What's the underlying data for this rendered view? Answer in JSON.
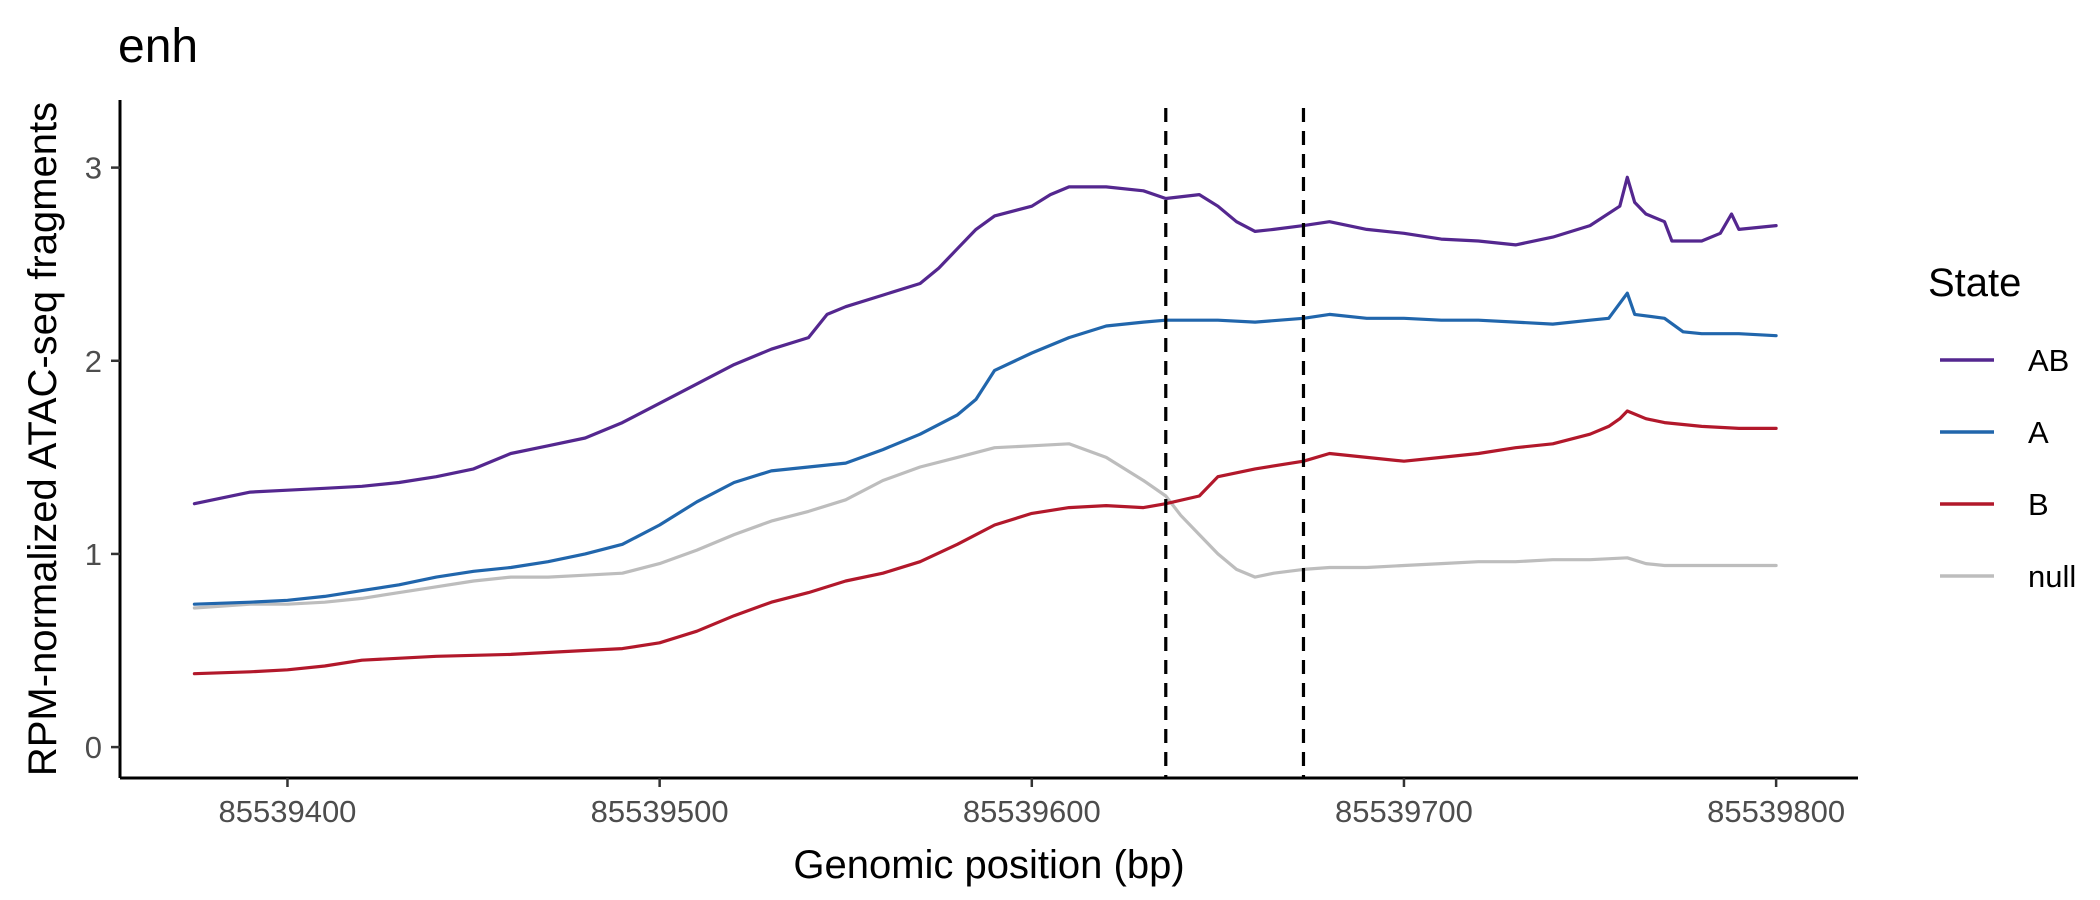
{
  "chart_data": {
    "type": "line",
    "title": "enh",
    "xlabel": "Genomic position (bp)",
    "ylabel": "RPM-normalized ATAC-seq fragments",
    "xlim": [
      85539355,
      85539822
    ],
    "ylim": [
      -0.16,
      3.35
    ],
    "x_ticks": [
      85539400,
      85539500,
      85539600,
      85539700,
      85539800
    ],
    "x_tick_labels": [
      "85539400",
      "85539500",
      "85539600",
      "85539700",
      "85539800"
    ],
    "y_ticks": [
      0,
      1,
      2,
      3
    ],
    "y_tick_labels": [
      "0",
      "1",
      "2",
      "3"
    ],
    "vlines": [
      85539636,
      85539673
    ],
    "grid": false,
    "legend": {
      "title": "State",
      "position": "right"
    },
    "series": [
      {
        "name": "AB",
        "color": "#54278f",
        "points": [
          [
            85539375,
            1.26
          ],
          [
            85539380,
            1.28
          ],
          [
            85539390,
            1.32
          ],
          [
            85539400,
            1.33
          ],
          [
            85539410,
            1.34
          ],
          [
            85539420,
            1.35
          ],
          [
            85539430,
            1.37
          ],
          [
            85539440,
            1.4
          ],
          [
            85539450,
            1.44
          ],
          [
            85539460,
            1.52
          ],
          [
            85539470,
            1.56
          ],
          [
            85539480,
            1.6
          ],
          [
            85539490,
            1.68
          ],
          [
            85539500,
            1.78
          ],
          [
            85539510,
            1.88
          ],
          [
            85539520,
            1.98
          ],
          [
            85539530,
            2.06
          ],
          [
            85539540,
            2.12
          ],
          [
            85539545,
            2.24
          ],
          [
            85539550,
            2.28
          ],
          [
            85539560,
            2.34
          ],
          [
            85539570,
            2.4
          ],
          [
            85539575,
            2.48
          ],
          [
            85539580,
            2.58
          ],
          [
            85539585,
            2.68
          ],
          [
            85539590,
            2.75
          ],
          [
            85539600,
            2.8
          ],
          [
            85539605,
            2.86
          ],
          [
            85539610,
            2.9
          ],
          [
            85539620,
            2.9
          ],
          [
            85539630,
            2.88
          ],
          [
            85539636,
            2.84
          ],
          [
            85539645,
            2.86
          ],
          [
            85539650,
            2.8
          ],
          [
            85539655,
            2.72
          ],
          [
            85539660,
            2.67
          ],
          [
            85539665,
            2.68
          ],
          [
            85539673,
            2.7
          ],
          [
            85539680,
            2.72
          ],
          [
            85539690,
            2.68
          ],
          [
            85539700,
            2.66
          ],
          [
            85539710,
            2.63
          ],
          [
            85539720,
            2.62
          ],
          [
            85539730,
            2.6
          ],
          [
            85539740,
            2.64
          ],
          [
            85539750,
            2.7
          ],
          [
            85539758,
            2.8
          ],
          [
            85539760,
            2.95
          ],
          [
            85539762,
            2.82
          ],
          [
            85539765,
            2.76
          ],
          [
            85539770,
            2.72
          ],
          [
            85539772,
            2.62
          ],
          [
            85539780,
            2.62
          ],
          [
            85539785,
            2.66
          ],
          [
            85539788,
            2.76
          ],
          [
            85539790,
            2.68
          ],
          [
            85539800,
            2.7
          ]
        ]
      },
      {
        "name": "A",
        "color": "#2166ac",
        "points": [
          [
            85539375,
            0.74
          ],
          [
            85539390,
            0.75
          ],
          [
            85539400,
            0.76
          ],
          [
            85539410,
            0.78
          ],
          [
            85539420,
            0.81
          ],
          [
            85539430,
            0.84
          ],
          [
            85539440,
            0.88
          ],
          [
            85539450,
            0.91
          ],
          [
            85539460,
            0.93
          ],
          [
            85539470,
            0.96
          ],
          [
            85539480,
            1.0
          ],
          [
            85539490,
            1.05
          ],
          [
            85539500,
            1.15
          ],
          [
            85539510,
            1.27
          ],
          [
            85539520,
            1.37
          ],
          [
            85539530,
            1.43
          ],
          [
            85539540,
            1.45
          ],
          [
            85539550,
            1.47
          ],
          [
            85539560,
            1.54
          ],
          [
            85539570,
            1.62
          ],
          [
            85539580,
            1.72
          ],
          [
            85539585,
            1.8
          ],
          [
            85539590,
            1.95
          ],
          [
            85539600,
            2.04
          ],
          [
            85539610,
            2.12
          ],
          [
            85539620,
            2.18
          ],
          [
            85539630,
            2.2
          ],
          [
            85539636,
            2.21
          ],
          [
            85539650,
            2.21
          ],
          [
            85539660,
            2.2
          ],
          [
            85539673,
            2.22
          ],
          [
            85539680,
            2.24
          ],
          [
            85539690,
            2.22
          ],
          [
            85539700,
            2.22
          ],
          [
            85539710,
            2.21
          ],
          [
            85539720,
            2.21
          ],
          [
            85539730,
            2.2
          ],
          [
            85539740,
            2.19
          ],
          [
            85539750,
            2.21
          ],
          [
            85539755,
            2.22
          ],
          [
            85539760,
            2.35
          ],
          [
            85539762,
            2.24
          ],
          [
            85539770,
            2.22
          ],
          [
            85539775,
            2.15
          ],
          [
            85539780,
            2.14
          ],
          [
            85539790,
            2.14
          ],
          [
            85539800,
            2.13
          ]
        ]
      },
      {
        "name": "B",
        "color": "#b2182b",
        "points": [
          [
            85539375,
            0.38
          ],
          [
            85539390,
            0.39
          ],
          [
            85539400,
            0.4
          ],
          [
            85539410,
            0.42
          ],
          [
            85539420,
            0.45
          ],
          [
            85539440,
            0.47
          ],
          [
            85539460,
            0.48
          ],
          [
            85539480,
            0.5
          ],
          [
            85539490,
            0.51
          ],
          [
            85539500,
            0.54
          ],
          [
            85539510,
            0.6
          ],
          [
            85539520,
            0.68
          ],
          [
            85539530,
            0.75
          ],
          [
            85539540,
            0.8
          ],
          [
            85539550,
            0.86
          ],
          [
            85539560,
            0.9
          ],
          [
            85539570,
            0.96
          ],
          [
            85539580,
            1.05
          ],
          [
            85539590,
            1.15
          ],
          [
            85539600,
            1.21
          ],
          [
            85539610,
            1.24
          ],
          [
            85539620,
            1.25
          ],
          [
            85539630,
            1.24
          ],
          [
            85539636,
            1.26
          ],
          [
            85539645,
            1.3
          ],
          [
            85539650,
            1.4
          ],
          [
            85539660,
            1.44
          ],
          [
            85539673,
            1.48
          ],
          [
            85539680,
            1.52
          ],
          [
            85539690,
            1.5
          ],
          [
            85539700,
            1.48
          ],
          [
            85539710,
            1.5
          ],
          [
            85539720,
            1.52
          ],
          [
            85539730,
            1.55
          ],
          [
            85539740,
            1.57
          ],
          [
            85539750,
            1.62
          ],
          [
            85539755,
            1.66
          ],
          [
            85539758,
            1.7
          ],
          [
            85539760,
            1.74
          ],
          [
            85539765,
            1.7
          ],
          [
            85539770,
            1.68
          ],
          [
            85539780,
            1.66
          ],
          [
            85539790,
            1.65
          ],
          [
            85539800,
            1.65
          ]
        ]
      },
      {
        "name": "null",
        "color": "#bdbdbd",
        "points": [
          [
            85539375,
            0.72
          ],
          [
            85539390,
            0.74
          ],
          [
            85539400,
            0.74
          ],
          [
            85539410,
            0.75
          ],
          [
            85539420,
            0.77
          ],
          [
            85539430,
            0.8
          ],
          [
            85539440,
            0.83
          ],
          [
            85539450,
            0.86
          ],
          [
            85539460,
            0.88
          ],
          [
            85539470,
            0.88
          ],
          [
            85539480,
            0.89
          ],
          [
            85539490,
            0.9
          ],
          [
            85539500,
            0.95
          ],
          [
            85539510,
            1.02
          ],
          [
            85539520,
            1.1
          ],
          [
            85539530,
            1.17
          ],
          [
            85539540,
            1.22
          ],
          [
            85539550,
            1.28
          ],
          [
            85539560,
            1.38
          ],
          [
            85539570,
            1.45
          ],
          [
            85539580,
            1.5
          ],
          [
            85539590,
            1.55
          ],
          [
            85539600,
            1.56
          ],
          [
            85539610,
            1.57
          ],
          [
            85539620,
            1.5
          ],
          [
            85539630,
            1.38
          ],
          [
            85539636,
            1.3
          ],
          [
            85539640,
            1.2
          ],
          [
            85539645,
            1.1
          ],
          [
            85539650,
            1.0
          ],
          [
            85539655,
            0.92
          ],
          [
            85539660,
            0.88
          ],
          [
            85539665,
            0.9
          ],
          [
            85539673,
            0.92
          ],
          [
            85539680,
            0.93
          ],
          [
            85539690,
            0.93
          ],
          [
            85539700,
            0.94
          ],
          [
            85539710,
            0.95
          ],
          [
            85539720,
            0.96
          ],
          [
            85539730,
            0.96
          ],
          [
            85539740,
            0.97
          ],
          [
            85539750,
            0.97
          ],
          [
            85539760,
            0.98
          ],
          [
            85539765,
            0.95
          ],
          [
            85539770,
            0.94
          ],
          [
            85539780,
            0.94
          ],
          [
            85539790,
            0.94
          ],
          [
            85539800,
            0.94
          ]
        ]
      }
    ]
  }
}
